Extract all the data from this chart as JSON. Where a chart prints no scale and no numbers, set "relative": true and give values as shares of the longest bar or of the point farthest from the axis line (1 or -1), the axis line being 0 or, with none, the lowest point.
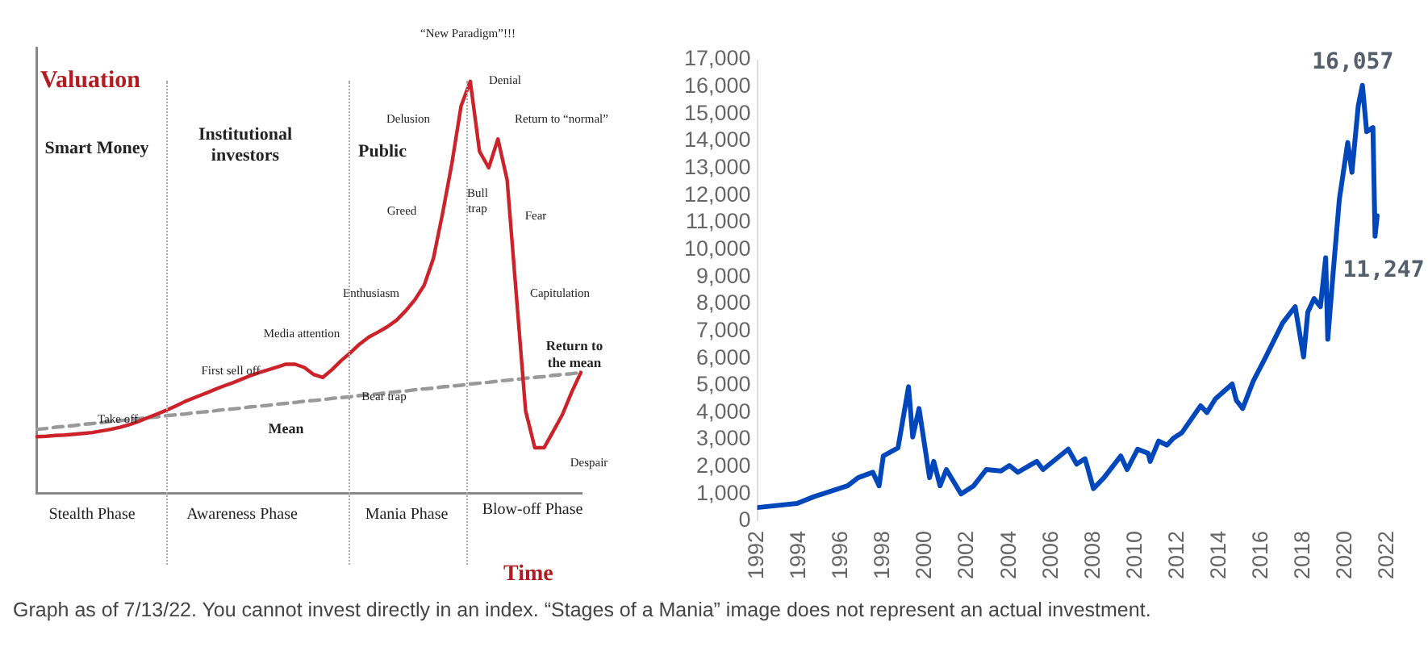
{
  "chart_data": [
    {
      "type": "line",
      "relative": true,
      "marker": "none",
      "xlabel": "Time",
      "ylabel": "Valuation",
      "categories": [
        null,
        null,
        null,
        null,
        null,
        null,
        null,
        null,
        null,
        null,
        null,
        null,
        null,
        null,
        null,
        null,
        null,
        null,
        null,
        null,
        null,
        null,
        null,
        null,
        null,
        null,
        null,
        null,
        null,
        null,
        null,
        null,
        null,
        null,
        null,
        null,
        null,
        null,
        null,
        null,
        null,
        null,
        null,
        null,
        null,
        null,
        null,
        null,
        null,
        null,
        null,
        null,
        null,
        null,
        null,
        null,
        null,
        null,
        null,
        null
      ],
      "series": [
        {
          "color": "#cc2229",
          "line_style": "solid",
          "values": [
            0.137,
            0.138,
            0.14,
            0.141,
            0.143,
            0.145,
            0.147,
            0.151,
            0.155,
            0.16,
            0.166,
            0.174,
            0.183,
            0.192,
            0.201,
            0.211,
            0.222,
            0.231,
            0.24,
            0.249,
            0.258,
            0.266,
            0.275,
            0.284,
            0.292,
            0.299,
            0.306,
            0.313,
            0.313,
            0.305,
            0.288,
            0.281,
            0.3,
            0.322,
            0.341,
            0.362,
            0.379,
            0.391,
            0.404,
            0.42,
            0.443,
            0.47,
            0.505,
            0.57,
            0.68,
            0.8,
            0.94,
            1,
            0.83,
            0.79,
            0.86,
            0.76,
            0.48,
            0.2,
            0.11,
            0.11,
            0.15,
            0.191,
            0.245,
            0.293
          ]
        },
        {
          "name": "Mean",
          "color": "#999999",
          "line_style": "dashed",
          "values": [
            0.155,
            0.157,
            0.16,
            0.162,
            0.164,
            0.167,
            0.169,
            0.171,
            0.174,
            0.176,
            0.178,
            0.181,
            0.183,
            0.185,
            0.188,
            0.19,
            0.192,
            0.195,
            0.197,
            0.199,
            0.202,
            0.204,
            0.206,
            0.209,
            0.211,
            0.213,
            0.216,
            0.218,
            0.22,
            0.223,
            0.225,
            0.227,
            0.23,
            0.232,
            0.234,
            0.237,
            0.239,
            0.241,
            0.244,
            0.246,
            0.248,
            0.251,
            0.253,
            0.255,
            0.258,
            0.26,
            0.262,
            0.265,
            0.267,
            0.269,
            0.272,
            0.274,
            0.276,
            0.279,
            0.281,
            0.283,
            0.286,
            0.288,
            0.29,
            0.293
          ]
        }
      ],
      "annotations": [
        "Smart Money",
        "Institutional investors",
        "Public",
        "Stealth Phase",
        "Awareness Phase",
        "Mania Phase",
        "Blow-off Phase",
        "Take off",
        "First sell off",
        "Media attention",
        "Bear trap",
        "Enthusiasm",
        "Greed",
        "Delusion",
        "“New Paradigm”!!!",
        "Denial",
        "Bull trap",
        "Return to “normal”",
        "Fear",
        "Capitulation",
        "Return to the mean",
        "Despair"
      ]
    },
    {
      "type": "line",
      "marker": "none",
      "color": "#0047bb",
      "x": [
        1992.0,
        1993.9,
        1994.7,
        1995.5,
        1996.3,
        1996.8,
        1997.5,
        1997.8,
        1998.0,
        1998.7,
        1999.2,
        1999.4,
        1999.7,
        2000.2,
        2000.4,
        2000.7,
        2001.0,
        2001.7,
        2002.3,
        2002.9,
        2003.6,
        2004.0,
        2004.4,
        2005.3,
        2005.6,
        2006.8,
        2007.2,
        2007.6,
        2008.0,
        2008.5,
        2009.3,
        2009.6,
        2010.1,
        2010.6,
        2010.7,
        2011.1,
        2011.5,
        2011.8,
        2012.2,
        2013.1,
        2013.4,
        2013.8,
        2014.6,
        2014.8,
        2015.1,
        2015.6,
        2016.2,
        2017.0,
        2017.6,
        2018.0,
        2018.2,
        2018.5,
        2018.8,
        2019.05,
        2019.15,
        2019.4,
        2019.7,
        2020.1,
        2020.3,
        2020.6,
        2020.8,
        2021.0,
        2021.3,
        2021.4,
        2021.5
      ],
      "values": [
        500,
        650,
        900,
        1100,
        1300,
        1600,
        1800,
        1300,
        2400,
        2700,
        4950,
        3100,
        4150,
        1600,
        2200,
        1300,
        1900,
        1000,
        1300,
        1900,
        1850,
        2050,
        1800,
        2200,
        1900,
        2650,
        2100,
        2300,
        1200,
        1600,
        2400,
        1900,
        2650,
        2500,
        2200,
        2950,
        2800,
        3050,
        3250,
        4250,
        4000,
        4500,
        5050,
        4450,
        4150,
        5150,
        6050,
        7300,
        7900,
        6050,
        7700,
        8200,
        7900,
        9700,
        6700,
        9100,
        11850,
        13950,
        12850,
        15300,
        16057,
        14350,
        14500,
        10500,
        11247
      ],
      "xlim": [
        1992,
        2022
      ],
      "xticks": [
        1992,
        1994,
        1996,
        1998,
        2000,
        2002,
        2004,
        2006,
        2008,
        2010,
        2012,
        2014,
        2016,
        2018,
        2020,
        2022
      ],
      "ylim": [
        0,
        17000
      ],
      "yticks": [
        0,
        {
          "value": 1000,
          "label": "1,000"
        },
        {
          "value": 2000,
          "label": "2,000"
        },
        {
          "value": 3000,
          "label": "3,000"
        },
        {
          "value": 4000,
          "label": "4,000"
        },
        {
          "value": 5000,
          "label": "5,000"
        },
        {
          "value": 6000,
          "label": "6,000"
        },
        {
          "value": 7000,
          "label": "7,000"
        },
        {
          "value": 8000,
          "label": "8,000"
        },
        {
          "value": 9000,
          "label": "9,000"
        },
        {
          "value": 10000,
          "label": "10,000"
        },
        {
          "value": 11000,
          "label": "11,000"
        },
        {
          "value": 12000,
          "label": "12,000"
        },
        {
          "value": 13000,
          "label": "13,000"
        },
        {
          "value": 14000,
          "label": "14,000"
        },
        {
          "value": 15000,
          "label": "15,000"
        },
        {
          "value": 16000,
          "label": "16,000"
        },
        {
          "value": 17000,
          "label": "17,000"
        }
      ],
      "annotations": [
        {
          "text": "16,057",
          "x": 2020.8,
          "y": 16057
        },
        {
          "text": "11,247",
          "x": 2021.5,
          "y": 11247
        },
        "Graph as of 7/13/22. You cannot invest directly in an index. “Stages of a Mania” image does not represent an actual investment."
      ]
    }
  ]
}
